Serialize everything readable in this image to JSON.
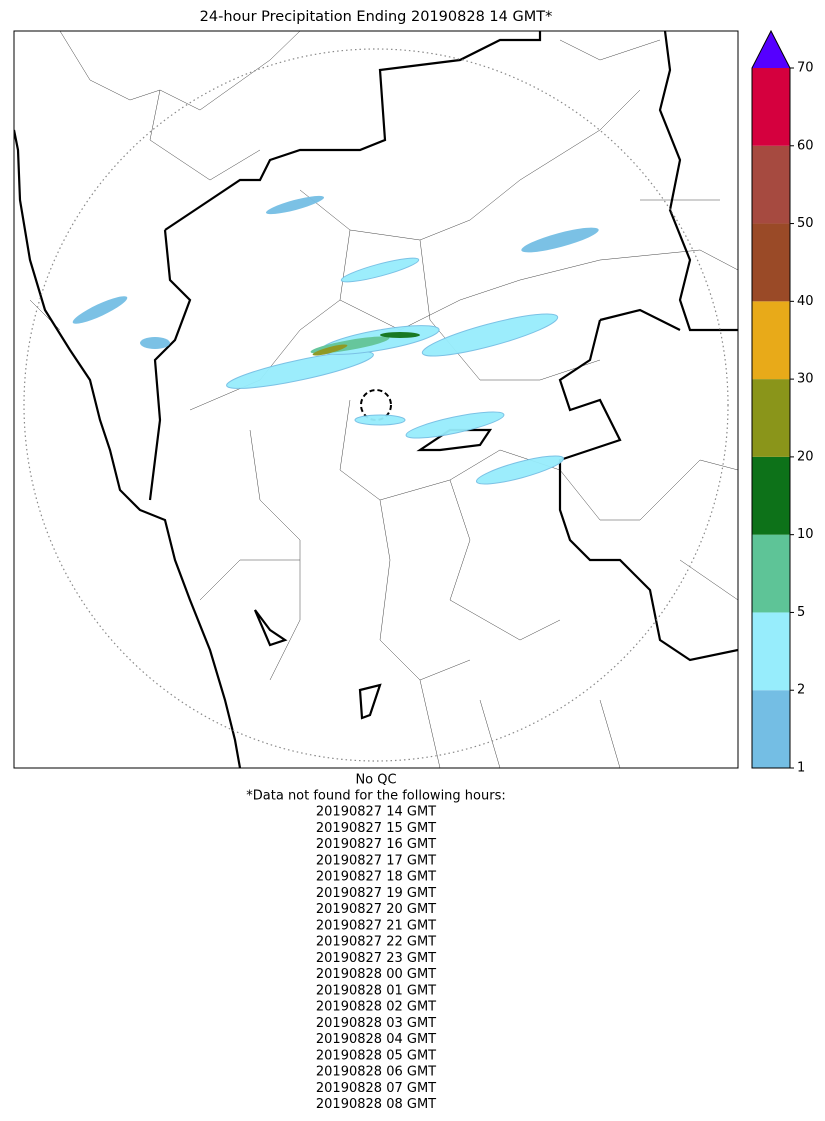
{
  "title": "24-hour Precipitation Ending 20190828 14 GMT*",
  "colorbar": {
    "bounds": [
      1,
      2,
      5,
      10,
      20,
      30,
      40,
      50,
      60,
      70
    ],
    "colors": [
      "#74bee4",
      "#97edfc",
      "#5ec497",
      "#0d7219",
      "#8a951a",
      "#e8aa19",
      "#9a4a27",
      "#a64a40",
      "#d5003e"
    ],
    "extend_color": "#5500ff"
  },
  "notes": {
    "qc": "No QC",
    "missing_heading": "*Data not found for the following hours:",
    "missing_hours": [
      "20190827 14 GMT",
      "20190827 15 GMT",
      "20190827 16 GMT",
      "20190827 17 GMT",
      "20190827 18 GMT",
      "20190827 19 GMT",
      "20190827 20 GMT",
      "20190827 21 GMT",
      "20190827 22 GMT",
      "20190827 23 GMT",
      "20190828 00 GMT",
      "20190828 01 GMT",
      "20190828 02 GMT",
      "20190828 03 GMT",
      "20190828 04 GMT",
      "20190828 05 GMT",
      "20190828 06 GMT",
      "20190828 07 GMT",
      "20190828 08 GMT"
    ]
  }
}
